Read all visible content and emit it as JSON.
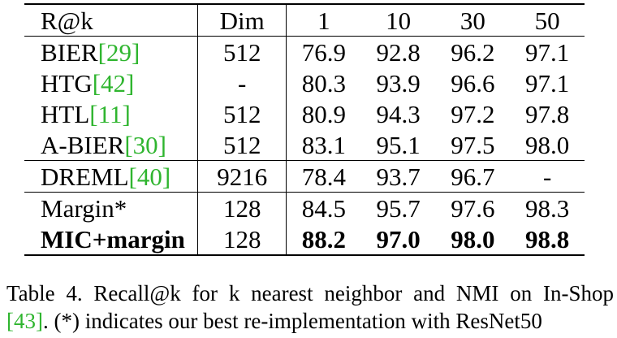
{
  "table": {
    "header": [
      "R@k",
      "Dim",
      "1",
      "10",
      "30",
      "50"
    ],
    "groups": [
      [
        {
          "method": "BIER",
          "ref": "[29]",
          "dim": "512",
          "values": [
            "76.9",
            "92.8",
            "96.2",
            "97.1"
          ],
          "bold": false
        },
        {
          "method": "HTG",
          "ref": "[42]",
          "dim": "-",
          "values": [
            "80.3",
            "93.9",
            "96.6",
            "97.1"
          ],
          "bold": false
        },
        {
          "method": "HTL",
          "ref": "[11]",
          "dim": "512",
          "values": [
            "80.9",
            "94.3",
            "97.2",
            "97.8"
          ],
          "bold": false
        },
        {
          "method": "A-BIER",
          "ref": "[30]",
          "dim": "512",
          "values": [
            "83.1",
            "95.1",
            "97.5",
            "98.0"
          ],
          "bold": false
        }
      ],
      [
        {
          "method": "DREML",
          "ref": "[40]",
          "dim": "9216",
          "values": [
            "78.4",
            "93.7",
            "96.7",
            "-"
          ],
          "bold": false
        }
      ],
      [
        {
          "method": "Margin*",
          "ref": "",
          "dim": "128",
          "values": [
            "84.5",
            "95.7",
            "97.6",
            "98.3"
          ],
          "bold": false
        },
        {
          "method": "MIC+margin",
          "ref": "",
          "dim": "128",
          "values": [
            "88.2",
            "97.0",
            "98.0",
            "98.8"
          ],
          "bold": true
        }
      ]
    ]
  },
  "caption": {
    "line1": "Table 4. Recall@k for k nearest neighbor and NMI on In-Shop",
    "line2_ref": "[43]",
    "line2_rest": ". (*) indicates our best re-implementation with ResNet50"
  }
}
